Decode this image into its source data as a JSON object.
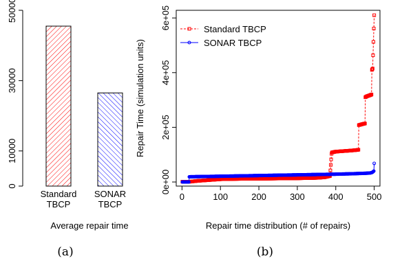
{
  "colors": {
    "red": "#ff0000",
    "blue": "#0000ff",
    "axis": "#000000"
  },
  "chart_data": [
    {
      "type": "bar",
      "panel_label": "(a)",
      "categories": [
        "Standard\nTBCP",
        "SONAR\nTBCP"
      ],
      "category_lines": [
        [
          "Standard",
          "TBCP"
        ],
        [
          "SONAR",
          "TBCP"
        ]
      ],
      "values": [
        45500,
        26500
      ],
      "colors": [
        "#ff0000",
        "#0000ff"
      ],
      "fill": [
        "hatch-right",
        "hatch-left"
      ],
      "xlabel": "Average repair time",
      "ylabel": "",
      "ylim": [
        0,
        50000
      ],
      "y_ticks": [
        0,
        10000,
        30000,
        50000
      ],
      "y_tick_labels": [
        "0",
        "10000",
        "30000",
        "50000"
      ],
      "grid": false
    },
    {
      "type": "scatter",
      "panel_label": "(b)",
      "xlabel": "Repair time distribution (# of repairs)",
      "ylabel": "Repair Time (simulation units)",
      "xlim": [
        -15,
        515
      ],
      "ylim": [
        -15000,
        628000
      ],
      "x_ticks": [
        0,
        100,
        200,
        300,
        400,
        500
      ],
      "x_tick_labels": [
        "0",
        "100",
        "200",
        "300",
        "400",
        "500"
      ],
      "y_ticks": [
        0,
        200000,
        400000,
        600000
      ],
      "y_tick_labels": [
        "0e+00",
        "2e+05",
        "4e+05",
        "6e+05"
      ],
      "legend_position": "top-left",
      "grid": false,
      "series": [
        {
          "name": "Standard TBCP",
          "color": "#ff0000",
          "marker": "square",
          "line_style": "dashed",
          "x": [
            1,
            20,
            40,
            60,
            80,
            100,
            130,
            160,
            200,
            240,
            280,
            320,
            350,
            370,
            385,
            389,
            390,
            400,
            420,
            440,
            455,
            459,
            460,
            470,
            476,
            477,
            480,
            490,
            493,
            494,
            496,
            500
          ],
          "y": [
            1000,
            1000,
            4000,
            6000,
            8000,
            10000,
            11000,
            11500,
            12000,
            12500,
            13000,
            14000,
            15000,
            17000,
            22000,
            103000,
            108000,
            111000,
            113000,
            115000,
            117000,
            118000,
            208000,
            212000,
            214000,
            310000,
            313000,
            318000,
            320000,
            410000,
            415000,
            610000
          ]
        },
        {
          "name": "SONAR TBCP",
          "color": "#0000ff",
          "marker": "circle",
          "line_style": "solid",
          "x": [
            1,
            10,
            18,
            19,
            40,
            80,
            120,
            160,
            200,
            240,
            280,
            320,
            360,
            400,
            440,
            460,
            480,
            490,
            495,
            499,
            500
          ],
          "y": [
            0,
            0,
            0,
            19000,
            19500,
            20500,
            21500,
            22500,
            23500,
            24500,
            25500,
            26500,
            27500,
            28500,
            30000,
            31000,
            32000,
            33000,
            35000,
            40000,
            68000
          ]
        }
      ]
    }
  ]
}
